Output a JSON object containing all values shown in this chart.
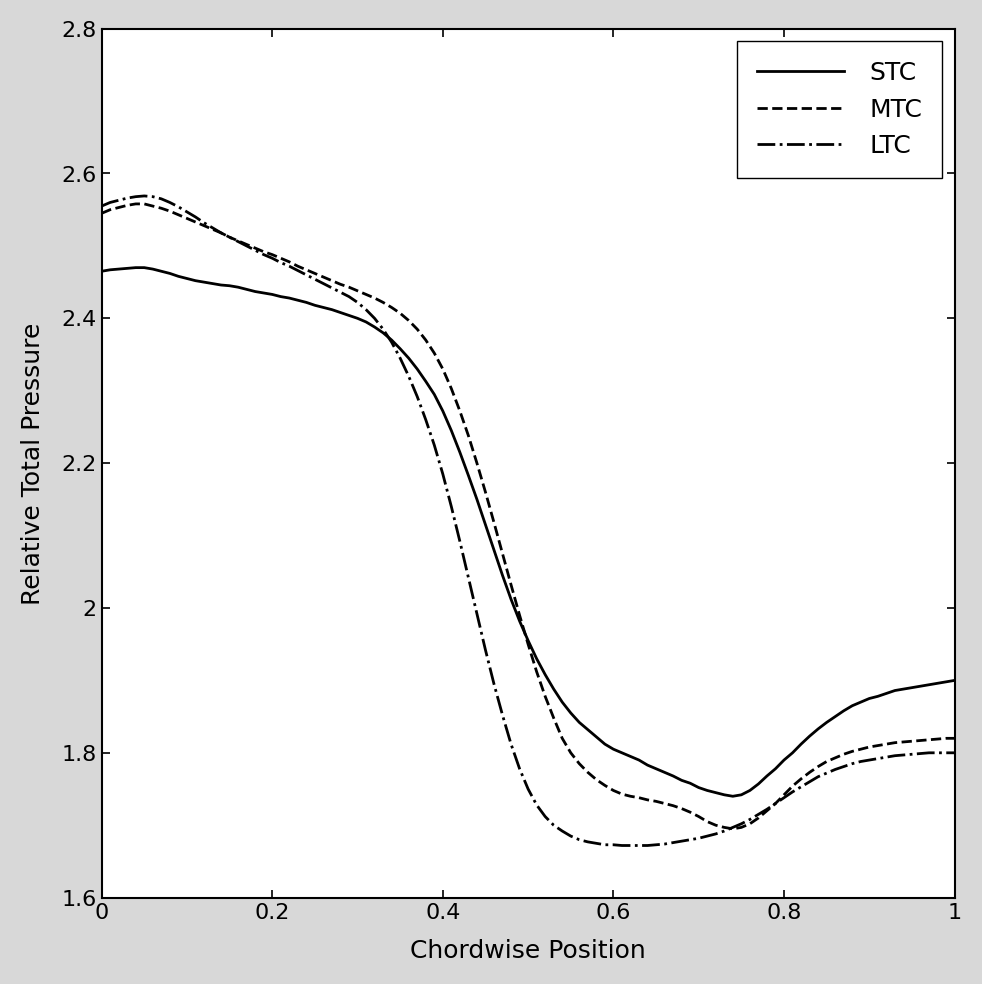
{
  "title": "",
  "xlabel": "Chordwise Position",
  "ylabel": "Relative Total Pressure",
  "xlim": [
    0,
    1
  ],
  "ylim": [
    1.6,
    2.8
  ],
  "yticks": [
    1.6,
    1.8,
    2.0,
    2.2,
    2.4,
    2.6,
    2.8
  ],
  "xticks": [
    0,
    0.2,
    0.4,
    0.6,
    0.8,
    1.0
  ],
  "background_color": "#ffffff",
  "border_color": "#c8c8c8",
  "line_color": "#000000",
  "legend_labels": [
    "STC",
    "MTC",
    "LTC"
  ],
  "legend_styles": [
    "solid",
    "dashed",
    "dashdot"
  ],
  "STC_x": [
    0.0,
    0.01,
    0.02,
    0.03,
    0.04,
    0.05,
    0.06,
    0.07,
    0.08,
    0.09,
    0.1,
    0.11,
    0.12,
    0.13,
    0.14,
    0.15,
    0.16,
    0.17,
    0.18,
    0.19,
    0.2,
    0.21,
    0.22,
    0.23,
    0.24,
    0.25,
    0.26,
    0.27,
    0.28,
    0.29,
    0.3,
    0.31,
    0.32,
    0.33,
    0.34,
    0.35,
    0.36,
    0.37,
    0.38,
    0.39,
    0.4,
    0.41,
    0.42,
    0.43,
    0.44,
    0.45,
    0.46,
    0.47,
    0.48,
    0.49,
    0.5,
    0.51,
    0.52,
    0.53,
    0.54,
    0.55,
    0.56,
    0.57,
    0.58,
    0.59,
    0.6,
    0.61,
    0.62,
    0.63,
    0.64,
    0.65,
    0.66,
    0.67,
    0.68,
    0.69,
    0.7,
    0.71,
    0.72,
    0.73,
    0.74,
    0.75,
    0.76,
    0.77,
    0.78,
    0.79,
    0.8,
    0.81,
    0.82,
    0.83,
    0.84,
    0.85,
    0.86,
    0.87,
    0.88,
    0.89,
    0.9,
    0.91,
    0.92,
    0.93,
    0.94,
    0.95,
    0.96,
    0.97,
    0.98,
    0.99,
    1.0
  ],
  "STC_y": [
    2.465,
    2.467,
    2.468,
    2.469,
    2.47,
    2.47,
    2.468,
    2.465,
    2.462,
    2.458,
    2.455,
    2.452,
    2.45,
    2.448,
    2.446,
    2.445,
    2.443,
    2.44,
    2.437,
    2.435,
    2.433,
    2.43,
    2.428,
    2.425,
    2.422,
    2.418,
    2.415,
    2.412,
    2.408,
    2.404,
    2.4,
    2.395,
    2.388,
    2.38,
    2.37,
    2.358,
    2.345,
    2.33,
    2.313,
    2.295,
    2.272,
    2.245,
    2.215,
    2.183,
    2.15,
    2.115,
    2.08,
    2.045,
    2.012,
    1.982,
    1.955,
    1.93,
    1.908,
    1.888,
    1.87,
    1.855,
    1.842,
    1.832,
    1.822,
    1.812,
    1.805,
    1.8,
    1.795,
    1.79,
    1.783,
    1.778,
    1.773,
    1.768,
    1.762,
    1.758,
    1.752,
    1.748,
    1.745,
    1.742,
    1.74,
    1.742,
    1.748,
    1.757,
    1.768,
    1.778,
    1.79,
    1.8,
    1.812,
    1.823,
    1.833,
    1.842,
    1.85,
    1.858,
    1.865,
    1.87,
    1.875,
    1.878,
    1.882,
    1.886,
    1.888,
    1.89,
    1.892,
    1.894,
    1.896,
    1.898,
    1.9
  ],
  "MTC_x": [
    0.0,
    0.01,
    0.02,
    0.03,
    0.04,
    0.05,
    0.06,
    0.07,
    0.08,
    0.09,
    0.1,
    0.11,
    0.12,
    0.13,
    0.14,
    0.15,
    0.16,
    0.17,
    0.18,
    0.19,
    0.2,
    0.21,
    0.22,
    0.23,
    0.24,
    0.25,
    0.26,
    0.27,
    0.28,
    0.29,
    0.3,
    0.31,
    0.32,
    0.33,
    0.34,
    0.35,
    0.36,
    0.37,
    0.38,
    0.39,
    0.4,
    0.41,
    0.42,
    0.43,
    0.44,
    0.45,
    0.46,
    0.47,
    0.48,
    0.49,
    0.5,
    0.51,
    0.52,
    0.53,
    0.54,
    0.55,
    0.56,
    0.57,
    0.58,
    0.59,
    0.6,
    0.61,
    0.62,
    0.63,
    0.64,
    0.65,
    0.66,
    0.67,
    0.68,
    0.69,
    0.7,
    0.71,
    0.72,
    0.73,
    0.74,
    0.75,
    0.76,
    0.77,
    0.78,
    0.79,
    0.8,
    0.81,
    0.82,
    0.83,
    0.84,
    0.85,
    0.86,
    0.87,
    0.88,
    0.89,
    0.9,
    0.91,
    0.92,
    0.93,
    0.94,
    0.95,
    0.96,
    0.97,
    0.98,
    0.99,
    1.0
  ],
  "MTC_y": [
    2.545,
    2.55,
    2.553,
    2.556,
    2.558,
    2.558,
    2.555,
    2.552,
    2.548,
    2.543,
    2.538,
    2.533,
    2.528,
    2.523,
    2.518,
    2.512,
    2.507,
    2.502,
    2.497,
    2.492,
    2.488,
    2.483,
    2.478,
    2.472,
    2.467,
    2.462,
    2.457,
    2.452,
    2.447,
    2.443,
    2.438,
    2.433,
    2.428,
    2.422,
    2.415,
    2.407,
    2.397,
    2.385,
    2.37,
    2.352,
    2.33,
    2.303,
    2.272,
    2.238,
    2.2,
    2.16,
    2.118,
    2.075,
    2.032,
    1.99,
    1.95,
    1.912,
    1.878,
    1.848,
    1.82,
    1.8,
    1.785,
    1.773,
    1.763,
    1.755,
    1.748,
    1.743,
    1.74,
    1.738,
    1.735,
    1.733,
    1.73,
    1.727,
    1.723,
    1.718,
    1.712,
    1.705,
    1.7,
    1.697,
    1.695,
    1.697,
    1.702,
    1.71,
    1.72,
    1.73,
    1.742,
    1.754,
    1.764,
    1.773,
    1.781,
    1.788,
    1.793,
    1.798,
    1.802,
    1.805,
    1.808,
    1.81,
    1.812,
    1.814,
    1.815,
    1.816,
    1.817,
    1.818,
    1.819,
    1.82,
    1.82
  ],
  "LTC_x": [
    0.0,
    0.01,
    0.02,
    0.03,
    0.04,
    0.05,
    0.06,
    0.07,
    0.08,
    0.09,
    0.1,
    0.11,
    0.12,
    0.13,
    0.14,
    0.15,
    0.16,
    0.17,
    0.18,
    0.19,
    0.2,
    0.21,
    0.22,
    0.23,
    0.24,
    0.25,
    0.26,
    0.27,
    0.28,
    0.29,
    0.3,
    0.31,
    0.32,
    0.33,
    0.34,
    0.35,
    0.36,
    0.37,
    0.38,
    0.39,
    0.4,
    0.41,
    0.42,
    0.43,
    0.44,
    0.45,
    0.46,
    0.47,
    0.48,
    0.49,
    0.5,
    0.51,
    0.52,
    0.53,
    0.54,
    0.55,
    0.56,
    0.57,
    0.58,
    0.59,
    0.6,
    0.61,
    0.62,
    0.63,
    0.64,
    0.65,
    0.66,
    0.67,
    0.68,
    0.69,
    0.7,
    0.71,
    0.72,
    0.73,
    0.74,
    0.75,
    0.76,
    0.77,
    0.78,
    0.79,
    0.8,
    0.81,
    0.82,
    0.83,
    0.84,
    0.85,
    0.86,
    0.87,
    0.88,
    0.89,
    0.9,
    0.91,
    0.92,
    0.93,
    0.94,
    0.95,
    0.96,
    0.97,
    0.98,
    0.99,
    1.0
  ],
  "LTC_y": [
    2.555,
    2.56,
    2.563,
    2.566,
    2.568,
    2.569,
    2.568,
    2.565,
    2.56,
    2.554,
    2.547,
    2.54,
    2.532,
    2.525,
    2.518,
    2.512,
    2.506,
    2.5,
    2.494,
    2.488,
    2.483,
    2.477,
    2.472,
    2.466,
    2.46,
    2.454,
    2.448,
    2.442,
    2.436,
    2.43,
    2.422,
    2.412,
    2.4,
    2.385,
    2.367,
    2.345,
    2.32,
    2.292,
    2.26,
    2.225,
    2.185,
    2.14,
    2.092,
    2.042,
    1.992,
    1.942,
    1.895,
    1.852,
    1.812,
    1.778,
    1.75,
    1.728,
    1.712,
    1.7,
    1.692,
    1.685,
    1.68,
    1.677,
    1.675,
    1.673,
    1.673,
    1.672,
    1.672,
    1.672,
    1.672,
    1.673,
    1.674,
    1.676,
    1.678,
    1.68,
    1.682,
    1.685,
    1.688,
    1.692,
    1.697,
    1.702,
    1.708,
    1.715,
    1.722,
    1.73,
    1.738,
    1.746,
    1.753,
    1.76,
    1.767,
    1.772,
    1.777,
    1.781,
    1.785,
    1.788,
    1.79,
    1.792,
    1.794,
    1.796,
    1.797,
    1.798,
    1.799,
    1.8,
    1.8,
    1.8,
    1.8
  ]
}
